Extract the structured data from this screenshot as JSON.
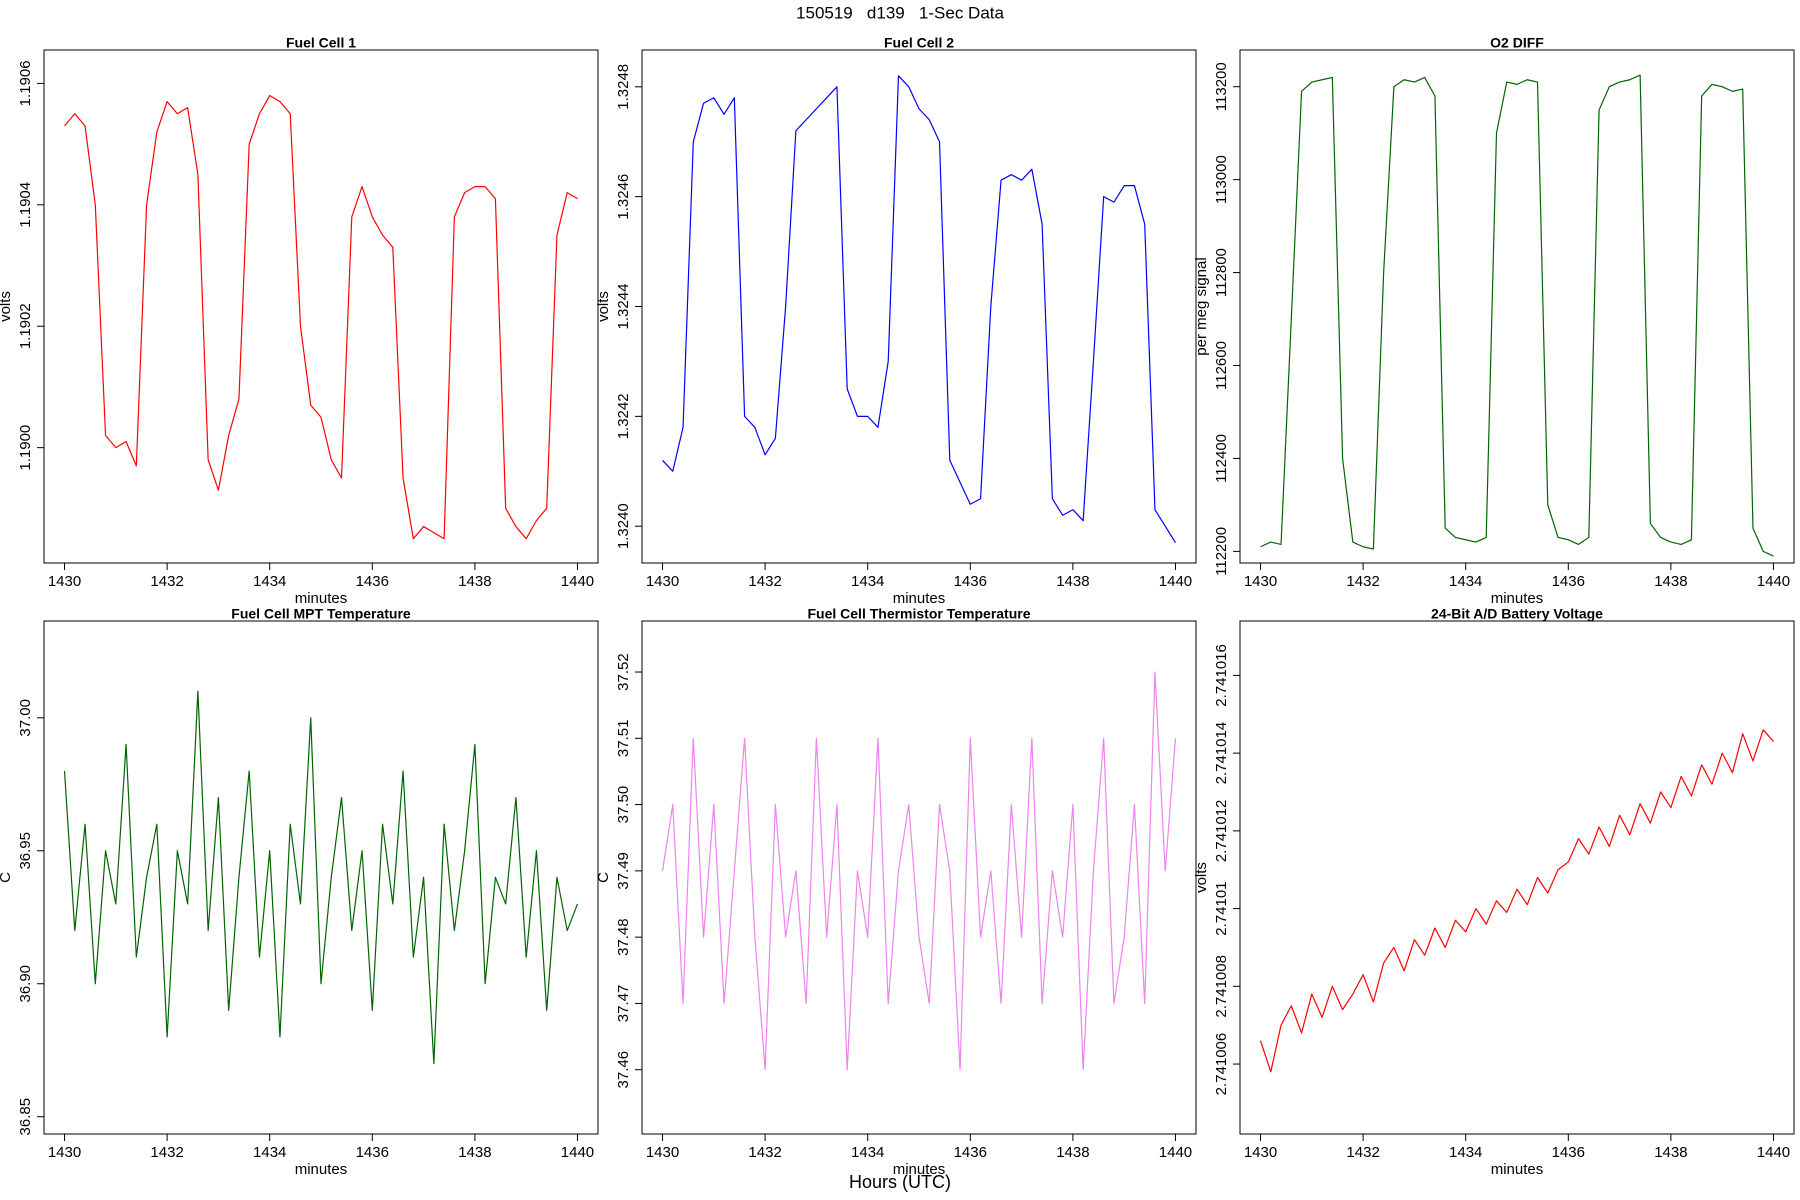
{
  "figure": {
    "title": "150519   d139   1-Sec Data",
    "x_label": "Hours (UTC)"
  },
  "chart_data": [
    {
      "type": "line",
      "title": "Fuel Cell 1",
      "x_label": "minutes",
      "y_label": "volts",
      "color": "#ff0000",
      "x": [
        1430,
        1430.2,
        1430.4,
        1430.6,
        1430.8,
        1431,
        1431.2,
        1431.4,
        1431.6,
        1431.8,
        1432,
        1432.2,
        1432.4,
        1432.6,
        1432.8,
        1433,
        1433.2,
        1433.4,
        1433.6,
        1433.8,
        1434,
        1434.2,
        1434.4,
        1434.6,
        1434.8,
        1435,
        1435.2,
        1435.4,
        1435.6,
        1435.8,
        1436,
        1436.2,
        1436.4,
        1436.6,
        1436.8,
        1437,
        1437.2,
        1437.4,
        1437.6,
        1437.8,
        1438,
        1438.2,
        1438.4,
        1438.6,
        1438.8,
        1439,
        1439.2,
        1439.4,
        1439.6,
        1439.8,
        1440
      ],
      "values": [
        1.19053,
        1.19055,
        1.19053,
        1.1904,
        1.19002,
        1.19,
        1.19001,
        1.18997,
        1.1904,
        1.19052,
        1.19057,
        1.19055,
        1.19056,
        1.19045,
        1.18998,
        1.18993,
        1.19002,
        1.19008,
        1.1905,
        1.19055,
        1.19058,
        1.19057,
        1.19055,
        1.1902,
        1.19007,
        1.19005,
        1.18998,
        1.18995,
        1.19038,
        1.19043,
        1.19038,
        1.19035,
        1.19033,
        1.18995,
        1.18985,
        1.18987,
        1.18986,
        1.18985,
        1.19038,
        1.19042,
        1.19043,
        1.19043,
        1.19041,
        1.1899,
        1.18987,
        1.18985,
        1.18988,
        1.1899,
        1.19035,
        1.19042,
        1.19041
      ],
      "xlim": [
        1429.6,
        1440.4
      ],
      "xticks": [
        1430,
        1432,
        1434,
        1436,
        1438,
        1440
      ],
      "ylim": [
        1.18981,
        1.190655
      ],
      "yticks": [
        {
          "value": 1.19,
          "label": "1.1900"
        },
        1.1902,
        1.1904,
        1.1906
      ]
    },
    {
      "type": "line",
      "title": "Fuel Cell 2",
      "x_label": "minutes",
      "y_label": "volts",
      "color": "#0000ff",
      "x": [
        1430,
        1430.2,
        1430.4,
        1430.6,
        1430.8,
        1431,
        1431.2,
        1431.4,
        1431.6,
        1431.8,
        1432,
        1432.2,
        1432.4,
        1432.6,
        1432.8,
        1433,
        1433.2,
        1433.4,
        1433.6,
        1433.8,
        1434,
        1434.2,
        1434.4,
        1434.6,
        1434.8,
        1435,
        1435.2,
        1435.4,
        1435.6,
        1435.8,
        1436,
        1436.2,
        1436.4,
        1436.6,
        1436.8,
        1437,
        1437.2,
        1437.4,
        1437.6,
        1437.8,
        1438,
        1438.2,
        1438.4,
        1438.6,
        1438.8,
        1439,
        1439.2,
        1439.4,
        1439.6,
        1439.8,
        1440
      ],
      "values": [
        1.32412,
        1.3241,
        1.32418,
        1.3247,
        1.32477,
        1.32478,
        1.32475,
        1.32478,
        1.3242,
        1.32418,
        1.32413,
        1.32416,
        1.3244,
        1.32472,
        1.32474,
        1.32476,
        1.32478,
        1.3248,
        1.32425,
        1.3242,
        1.3242,
        1.32418,
        1.3243,
        1.32482,
        1.3248,
        1.32476,
        1.32474,
        1.3247,
        1.32412,
        1.32408,
        1.32404,
        1.32405,
        1.3244,
        1.32463,
        1.32464,
        1.32463,
        1.32465,
        1.32455,
        1.32405,
        1.32402,
        1.32403,
        1.32401,
        1.3243,
        1.3246,
        1.32459,
        1.32462,
        1.32462,
        1.32455,
        1.32403,
        1.324,
        1.32397
      ],
      "xlim": [
        1429.6,
        1440.4
      ],
      "xticks": [
        1430,
        1432,
        1434,
        1436,
        1438,
        1440
      ],
      "ylim": [
        1.323933,
        1.324867
      ],
      "yticks": [
        {
          "value": 1.324,
          "label": "1.3240"
        },
        1.3242,
        1.3244,
        1.3246,
        1.3248
      ]
    },
    {
      "type": "line",
      "title": "O2 DIFF",
      "x_label": "minutes",
      "y_label": "per meg signal",
      "color": "#006400",
      "x": [
        1430,
        1430.2,
        1430.4,
        1430.6,
        1430.8,
        1431,
        1431.2,
        1431.4,
        1431.6,
        1431.8,
        1432,
        1432.2,
        1432.4,
        1432.6,
        1432.8,
        1433,
        1433.2,
        1433.4,
        1433.6,
        1433.8,
        1434,
        1434.2,
        1434.4,
        1434.6,
        1434.8,
        1435,
        1435.2,
        1435.4,
        1435.6,
        1435.8,
        1436,
        1436.2,
        1436.4,
        1436.6,
        1436.8,
        1437,
        1437.2,
        1437.4,
        1437.6,
        1437.8,
        1438,
        1438.2,
        1438.4,
        1438.6,
        1438.8,
        1439,
        1439.2,
        1439.4,
        1439.6,
        1439.8,
        1440
      ],
      "values": [
        112210,
        112220,
        112215,
        112700,
        113190,
        113210,
        113215,
        113220,
        112400,
        112220,
        112210,
        112205,
        112800,
        113200,
        113215,
        113210,
        113220,
        113180,
        112250,
        112230,
        112225,
        112220,
        112230,
        113100,
        113210,
        113205,
        113215,
        113210,
        112300,
        112230,
        112225,
        112215,
        112230,
        113150,
        113200,
        113210,
        113215,
        113225,
        112260,
        112230,
        112220,
        112215,
        112225,
        113180,
        113205,
        113200,
        113190,
        113195,
        112250,
        112200,
        112190
      ],
      "xlim": [
        1429.6,
        1440.4
      ],
      "xticks": [
        1430,
        1432,
        1434,
        1436,
        1438,
        1440
      ],
      "ylim": [
        112175,
        113279
      ],
      "yticks": [
        112200,
        112400,
        112600,
        112800,
        113000,
        113200
      ]
    },
    {
      "type": "line",
      "title": "Fuel Cell MPT Temperature",
      "x_label": "minutes",
      "y_label": "C",
      "color": "#006400",
      "x": [
        1430,
        1430.2,
        1430.4,
        1430.6,
        1430.8,
        1431,
        1431.2,
        1431.4,
        1431.6,
        1431.8,
        1432,
        1432.2,
        1432.4,
        1432.6,
        1432.8,
        1433,
        1433.2,
        1433.4,
        1433.6,
        1433.8,
        1434,
        1434.2,
        1434.4,
        1434.6,
        1434.8,
        1435,
        1435.2,
        1435.4,
        1435.6,
        1435.8,
        1436,
        1436.2,
        1436.4,
        1436.6,
        1436.8,
        1437,
        1437.2,
        1437.4,
        1437.6,
        1437.8,
        1438,
        1438.2,
        1438.4,
        1438.6,
        1438.8,
        1439,
        1439.2,
        1439.4,
        1439.6,
        1439.8,
        1440
      ],
      "values": [
        36.98,
        36.92,
        36.96,
        36.9,
        36.95,
        36.93,
        36.99,
        36.91,
        36.94,
        36.96,
        36.88,
        36.95,
        36.93,
        37.01,
        36.92,
        36.97,
        36.89,
        36.94,
        36.98,
        36.91,
        36.95,
        36.88,
        36.96,
        36.93,
        37.0,
        36.9,
        36.94,
        36.97,
        36.92,
        36.95,
        36.89,
        36.96,
        36.93,
        36.98,
        36.91,
        36.94,
        36.87,
        36.96,
        36.92,
        36.95,
        36.99,
        36.9,
        36.94,
        36.93,
        36.97,
        36.91,
        36.95,
        36.89,
        36.94,
        36.92,
        36.93
      ],
      "xlim": [
        1429.6,
        1440.4
      ],
      "xticks": [
        1430,
        1432,
        1434,
        1436,
        1438,
        1440
      ],
      "ylim": [
        36.8435,
        37.0364
      ],
      "yticks": [
        36.85,
        {
          "value": 36.9,
          "label": "36.90"
        },
        36.95,
        {
          "value": 37,
          "label": "37.00"
        }
      ]
    },
    {
      "type": "line",
      "title": "Fuel Cell Thermistor Temperature",
      "x_label": "minutes",
      "y_label": "C",
      "color": "#ee82ee",
      "x": [
        1430,
        1430.2,
        1430.4,
        1430.6,
        1430.8,
        1431,
        1431.2,
        1431.4,
        1431.6,
        1431.8,
        1432,
        1432.2,
        1432.4,
        1432.6,
        1432.8,
        1433,
        1433.2,
        1433.4,
        1433.6,
        1433.8,
        1434,
        1434.2,
        1434.4,
        1434.6,
        1434.8,
        1435,
        1435.2,
        1435.4,
        1435.6,
        1435.8,
        1436,
        1436.2,
        1436.4,
        1436.6,
        1436.8,
        1437,
        1437.2,
        1437.4,
        1437.6,
        1437.8,
        1438,
        1438.2,
        1438.4,
        1438.6,
        1438.8,
        1439,
        1439.2,
        1439.4,
        1439.6,
        1439.8,
        1440
      ],
      "values": [
        37.49,
        37.5,
        37.47,
        37.51,
        37.48,
        37.5,
        37.47,
        37.49,
        37.51,
        37.48,
        37.46,
        37.5,
        37.48,
        37.49,
        37.47,
        37.51,
        37.48,
        37.5,
        37.46,
        37.49,
        37.48,
        37.51,
        37.47,
        37.49,
        37.5,
        37.48,
        37.47,
        37.5,
        37.49,
        37.46,
        37.51,
        37.48,
        37.49,
        37.47,
        37.5,
        37.48,
        37.51,
        37.47,
        37.49,
        37.48,
        37.5,
        37.46,
        37.49,
        37.51,
        37.47,
        37.48,
        37.5,
        37.47,
        37.52,
        37.49,
        37.51
      ],
      "xlim": [
        1429.6,
        1440.4
      ],
      "xticks": [
        1430,
        1432,
        1434,
        1436,
        1438,
        1440
      ],
      "ylim": [
        37.4503,
        37.5277
      ],
      "yticks": [
        37.46,
        37.47,
        37.48,
        37.49,
        {
          "value": 37.5,
          "label": "37.50"
        },
        37.51,
        37.52
      ]
    },
    {
      "type": "line",
      "title": "24-Bit A/D Battery Voltage",
      "x_label": "minutes",
      "y_label": "volts",
      "color": "#ff0000",
      "x": [
        1430,
        1430.2,
        1430.4,
        1430.6,
        1430.8,
        1431,
        1431.2,
        1431.4,
        1431.6,
        1431.8,
        1432,
        1432.2,
        1432.4,
        1432.6,
        1432.8,
        1433,
        1433.2,
        1433.4,
        1433.6,
        1433.8,
        1434,
        1434.2,
        1434.4,
        1434.6,
        1434.8,
        1435,
        1435.2,
        1435.4,
        1435.6,
        1435.8,
        1436,
        1436.2,
        1436.4,
        1436.6,
        1436.8,
        1437,
        1437.2,
        1437.4,
        1437.6,
        1437.8,
        1438,
        1438.2,
        1438.4,
        1438.6,
        1438.8,
        1439,
        1439.2,
        1439.4,
        1439.6,
        1439.8,
        1440
      ],
      "values": [
        2.7410066,
        2.7410058,
        2.741007,
        2.7410075,
        2.7410068,
        2.7410078,
        2.7410072,
        2.741008,
        2.7410074,
        2.7410078,
        2.7410083,
        2.7410076,
        2.7410086,
        2.741009,
        2.7410084,
        2.7410092,
        2.7410088,
        2.7410095,
        2.741009,
        2.7410097,
        2.7410094,
        2.74101,
        2.7410096,
        2.7410102,
        2.7410099,
        2.7410105,
        2.7410101,
        2.7410108,
        2.7410104,
        2.741011,
        2.7410112,
        2.7410118,
        2.7410114,
        2.7410121,
        2.7410116,
        2.7410124,
        2.7410119,
        2.7410127,
        2.7410122,
        2.741013,
        2.7410126,
        2.7410134,
        2.7410129,
        2.7410137,
        2.7410132,
        2.741014,
        2.7410135,
        2.7410145,
        2.7410138,
        2.7410146,
        2.7410143
      ],
      "xlim": [
        1429.6,
        1440.4
      ],
      "xticks": [
        1430,
        1432,
        1434,
        1436,
        1438,
        1440
      ],
      "ylim": [
        2.7410042,
        2.7410174
      ],
      "yticks": [
        2.741006,
        2.741008,
        2.74101,
        2.741012,
        2.741014,
        2.741016
      ]
    }
  ]
}
